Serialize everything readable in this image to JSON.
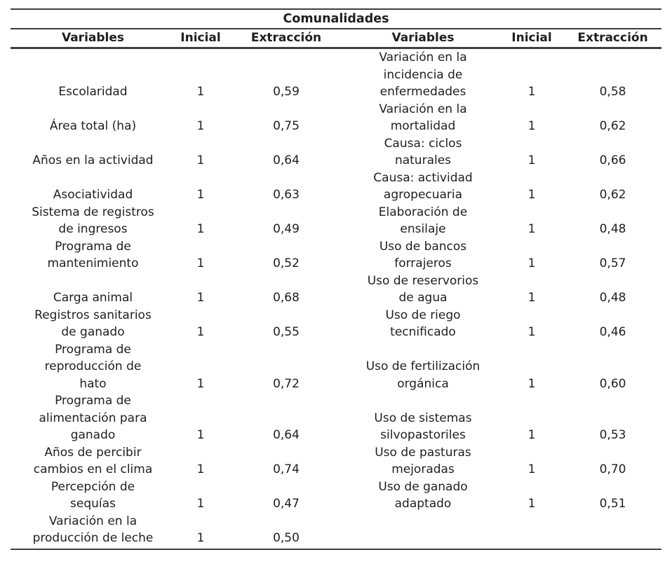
{
  "table": {
    "title": "Comunalidades",
    "headers": [
      "Variables",
      "Inicial",
      "Extracción",
      "Variables",
      "Inicial",
      "Extracción"
    ],
    "rows": [
      {
        "left": {
          "variable": "Escolaridad",
          "inicial": "1",
          "extraccion": "0,59"
        },
        "right": {
          "variable": "Variación en la\nincidencia de\nenfermedades",
          "inicial": "1",
          "extraccion": "0,58"
        }
      },
      {
        "left": {
          "variable": "Área total (ha)",
          "inicial": "1",
          "extraccion": "0,75"
        },
        "right": {
          "variable": "Variación en la\nmortalidad",
          "inicial": "1",
          "extraccion": "0,62"
        }
      },
      {
        "left": {
          "variable": "Años en la actividad",
          "inicial": "1",
          "extraccion": "0,64"
        },
        "right": {
          "variable": "Causa: ciclos\nnaturales",
          "inicial": "1",
          "extraccion": "0,66"
        }
      },
      {
        "left": {
          "variable": "Asociatividad",
          "inicial": "1",
          "extraccion": "0,63"
        },
        "right": {
          "variable": "Causa: actividad\nagropecuaria",
          "inicial": "1",
          "extraccion": "0,62"
        }
      },
      {
        "left": {
          "variable": "Sistema de registros\nde ingresos",
          "inicial": "1",
          "extraccion": "0,49"
        },
        "right": {
          "variable": "Elaboración de\nensilaje",
          "inicial": "1",
          "extraccion": "0,48"
        }
      },
      {
        "left": {
          "variable": "Programa de\nmantenimiento",
          "inicial": "1",
          "extraccion": "0,52"
        },
        "right": {
          "variable": "Uso de bancos\nforrajeros",
          "inicial": "1",
          "extraccion": "0,57"
        }
      },
      {
        "left": {
          "variable": "Carga animal",
          "inicial": "1",
          "extraccion": "0,68"
        },
        "right": {
          "variable": "Uso de reservorios\nde agua",
          "inicial": "1",
          "extraccion": "0,48"
        }
      },
      {
        "left": {
          "variable": "Registros sanitarios\nde ganado",
          "inicial": "1",
          "extraccion": "0,55"
        },
        "right": {
          "variable": "Uso de riego\ntecnificado",
          "inicial": "1",
          "extraccion": "0,46"
        }
      },
      {
        "left": {
          "variable": "Programa de\nreproducción de\nhato",
          "inicial": "1",
          "extraccion": "0,72"
        },
        "right": {
          "variable": "Uso de fertilización\norgánica",
          "inicial": "1",
          "extraccion": "0,60"
        }
      },
      {
        "left": {
          "variable": "Programa de\nalimentación para\nganado",
          "inicial": "1",
          "extraccion": "0,64"
        },
        "right": {
          "variable": "Uso de sistemas\nsilvopastoriles",
          "inicial": "1",
          "extraccion": "0,53"
        }
      },
      {
        "left": {
          "variable": "Años de percibir\ncambios en el clima",
          "inicial": "1",
          "extraccion": "0,74"
        },
        "right": {
          "variable": "Uso de pasturas\nmejoradas",
          "inicial": "1",
          "extraccion": "0,70"
        }
      },
      {
        "left": {
          "variable": "Percepción de\nsequías",
          "inicial": "1",
          "extraccion": "0,47"
        },
        "right": {
          "variable": "Uso de ganado\nadaptado",
          "inicial": "1",
          "extraccion": "0,51"
        }
      },
      {
        "left": {
          "variable": "Variación en la\nproducción de leche",
          "inicial": "1",
          "extraccion": "0,50"
        },
        "right": {
          "variable": "",
          "inicial": "",
          "extraccion": ""
        }
      }
    ]
  },
  "colors": {
    "text": "#1f1f1f",
    "rule": "#3f3f3f",
    "background": "#ffffff"
  }
}
